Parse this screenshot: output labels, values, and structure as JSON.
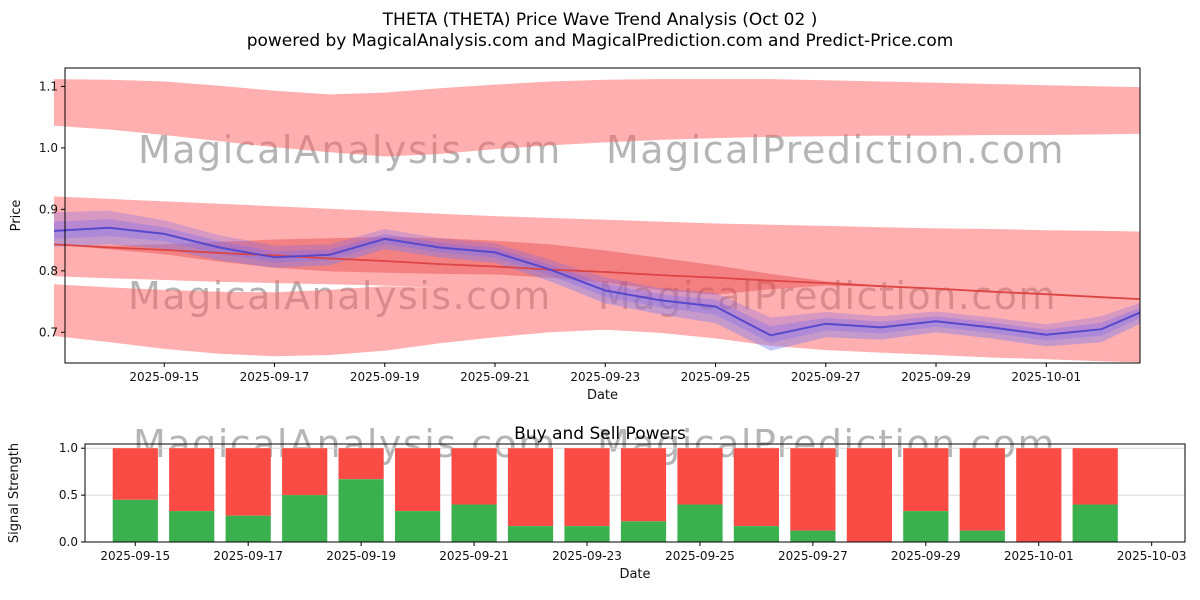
{
  "header": {
    "title": "THETA (THETA) Price Wave Trend Analysis (Oct 02 )",
    "subtitle": "powered by MagicalAnalysis.com and MagicalPrediction.com and Predict-Price.com"
  },
  "watermarks": {
    "analysis": "MagicalAnalysis.com",
    "prediction": "MagicalPrediction.com"
  },
  "chart_data": [
    {
      "type": "area",
      "name": "price-wave-trend",
      "xlabel": "Date",
      "ylabel": "Price",
      "x_range": [
        0.2,
        19.7
      ],
      "ylim": [
        0.65,
        1.13
      ],
      "yticks": [
        0.7,
        0.8,
        0.9,
        1.0,
        1.1
      ],
      "xticks": [
        {
          "x": 2,
          "label": "2025-09-15"
        },
        {
          "x": 4,
          "label": "2025-09-17"
        },
        {
          "x": 6,
          "label": "2025-09-19"
        },
        {
          "x": 8,
          "label": "2025-09-21"
        },
        {
          "x": 10,
          "label": "2025-09-23"
        },
        {
          "x": 12,
          "label": "2025-09-25"
        },
        {
          "x": 14,
          "label": "2025-09-27"
        },
        {
          "x": 16,
          "label": "2025-09-29"
        },
        {
          "x": 18,
          "label": "2025-10-01"
        }
      ],
      "x": [
        0,
        1,
        2,
        3,
        4,
        5,
        6,
        7,
        8,
        9,
        10,
        11,
        12,
        13,
        14,
        15,
        16,
        17,
        18,
        19,
        19.7
      ],
      "series": {
        "price_line": [
          0.865,
          0.87,
          0.86,
          0.838,
          0.822,
          0.826,
          0.852,
          0.838,
          0.83,
          0.802,
          0.768,
          0.752,
          0.742,
          0.695,
          0.714,
          0.708,
          0.718,
          0.708,
          0.696,
          0.705,
          0.732
        ],
        "trend_line": [
          0.843,
          0.838,
          0.834,
          0.829,
          0.825,
          0.82,
          0.816,
          0.811,
          0.807,
          0.802,
          0.798,
          0.793,
          0.789,
          0.784,
          0.78,
          0.775,
          0.771,
          0.766,
          0.762,
          0.757,
          0.754
        ]
      },
      "bands": {
        "upper": {
          "top": [
            1.112,
            1.111,
            1.108,
            1.101,
            1.093,
            1.087,
            1.09,
            1.097,
            1.103,
            1.108,
            1.111,
            1.112,
            1.112,
            1.112,
            1.11,
            1.108,
            1.106,
            1.104,
            1.102,
            1.1,
            1.099
          ],
          "bottom": [
            1.036,
            1.03,
            1.021,
            1.011,
            1.001,
            0.993,
            0.986,
            0.99,
            0.998,
            1.004,
            1.009,
            1.013,
            1.016,
            1.018,
            1.019,
            1.02,
            1.02,
            1.021,
            1.021,
            1.022,
            1.023
          ]
        },
        "main": {
          "top": [
            0.921,
            0.917,
            0.913,
            0.909,
            0.905,
            0.901,
            0.897,
            0.893,
            0.889,
            0.886,
            0.883,
            0.88,
            0.877,
            0.875,
            0.873,
            0.871,
            0.869,
            0.868,
            0.866,
            0.865,
            0.864
          ],
          "bottom": [
            0.791,
            0.788,
            0.785,
            0.782,
            0.78,
            0.778,
            0.776,
            0.772,
            0.766,
            0.757,
            0.747,
            0.736,
            0.724,
            0.71,
            0.699,
            0.69,
            0.682,
            0.675,
            0.668,
            0.662,
            0.658
          ]
        },
        "lower_left": {
          "top": [
            0.778,
            0.773,
            0.769,
            0.766,
            0.765,
            0.769,
            0.775,
            0.772,
            0.766,
            0.757,
            0.747,
            0.736,
            0.724,
            0.71,
            0.699,
            0.69,
            0.682,
            0.675,
            0.668,
            0.662,
            0.658
          ],
          "bottom": [
            0.694,
            0.684,
            0.673,
            0.665,
            0.661,
            0.663,
            0.67,
            0.682,
            0.692,
            0.7,
            0.704,
            0.699,
            0.69,
            0.678,
            0.671,
            0.667,
            0.663,
            0.659,
            0.656,
            0.653,
            0.651
          ]
        },
        "core": {
          "top": [
            0.843,
            0.841,
            0.843,
            0.847,
            0.851,
            0.853,
            0.855,
            0.853,
            0.849,
            0.843,
            0.833,
            0.821,
            0.809,
            0.795,
            0.783,
            0.776,
            0.771,
            0.766,
            0.762,
            0.757,
            0.754
          ],
          "bottom": [
            0.843,
            0.835,
            0.827,
            0.815,
            0.805,
            0.799,
            0.797,
            0.795,
            0.794,
            0.789,
            0.781,
            0.769,
            0.761,
            0.77,
            0.776,
            0.774,
            0.771,
            0.766,
            0.762,
            0.757,
            0.754
          ]
        },
        "purple": {
          "top": [
            0.895,
            0.898,
            0.882,
            0.858,
            0.841,
            0.843,
            0.868,
            0.853,
            0.845,
            0.818,
            0.789,
            0.772,
            0.764,
            0.724,
            0.733,
            0.726,
            0.734,
            0.724,
            0.713,
            0.726,
            0.748
          ],
          "bottom": [
            0.839,
            0.843,
            0.836,
            0.817,
            0.805,
            0.809,
            0.835,
            0.822,
            0.813,
            0.783,
            0.747,
            0.729,
            0.715,
            0.67,
            0.692,
            0.688,
            0.7,
            0.69,
            0.677,
            0.684,
            0.714
          ]
        }
      },
      "colors": {
        "band_pink": "#ff5f5f",
        "band_red_core": "#e43d3d",
        "trend_red": "#dd4444",
        "wave_purple": "#5246cc",
        "wave_band": "#7b68ee",
        "wave_blue": "#7a9bf5"
      }
    },
    {
      "type": "bar",
      "name": "buy-sell-powers",
      "title": "Buy and Sell Powers",
      "xlabel": "Date",
      "ylabel": "Signal Strength",
      "ylim": [
        0,
        1.045
      ],
      "yticks": [
        0.0,
        0.5,
        1.0
      ],
      "x_range": [
        -0.89,
        18.59
      ],
      "bar_width": 0.8,
      "total": 1.0,
      "categories": [
        "2025-09-15",
        "2025-09-16",
        "2025-09-17",
        "2025-09-18",
        "2025-09-19",
        "2025-09-20",
        "2025-09-21",
        "2025-09-22",
        "2025-09-23",
        "2025-09-24",
        "2025-09-25",
        "2025-09-26",
        "2025-09-27",
        "2025-09-28",
        "2025-09-29",
        "2025-09-30",
        "2025-10-01",
        "2025-10-02"
      ],
      "xticks": [
        {
          "x": 0,
          "label": "2025-09-15"
        },
        {
          "x": 2,
          "label": "2025-09-17"
        },
        {
          "x": 4,
          "label": "2025-09-19"
        },
        {
          "x": 6,
          "label": "2025-09-21"
        },
        {
          "x": 8,
          "label": "2025-09-23"
        },
        {
          "x": 10,
          "label": "2025-09-25"
        },
        {
          "x": 12,
          "label": "2025-09-27"
        },
        {
          "x": 14,
          "label": "2025-09-29"
        },
        {
          "x": 16,
          "label": "2025-10-01"
        },
        {
          "x": 18,
          "label": "2025-10-03"
        }
      ],
      "series": [
        {
          "name": "buy",
          "color": "#3bb04e",
          "values": [
            0.45,
            0.33,
            0.28,
            0.5,
            0.67,
            0.33,
            0.4,
            0.17,
            0.17,
            0.22,
            0.4,
            0.17,
            0.12,
            0.0,
            0.33,
            0.12,
            0.0,
            0.4
          ]
        },
        {
          "name": "sell",
          "color": "#fb4b45",
          "values": [
            0.55,
            0.67,
            0.72,
            0.5,
            0.33,
            0.67,
            0.6,
            0.83,
            0.83,
            0.78,
            0.6,
            0.83,
            0.88,
            1.0,
            0.67,
            0.88,
            1.0,
            0.6
          ]
        }
      ]
    }
  ]
}
